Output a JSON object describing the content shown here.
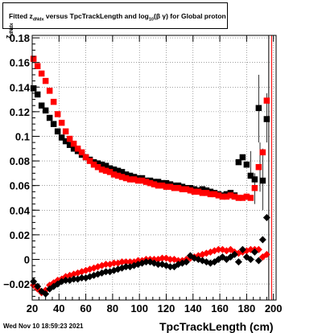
{
  "title": {
    "prefix": "Fitted  z",
    "sub1": "dNdx",
    "middle": "  versus TpcTrackLength and log",
    "sub2": "10",
    "suffix": "(β  γ) for Global proton"
  },
  "timestamp": "Wed Nov 10 18:59:23 2021",
  "axis": {
    "xlabel": "TpcTrackLength (cm)",
    "ylabel_main": "z",
    "ylabel_sub": "dNdx"
  },
  "chart_data": {
    "type": "scatter",
    "xlim": [
      20,
      202
    ],
    "ylim": [
      -0.033,
      0.182
    ],
    "xticks": [
      20,
      40,
      60,
      80,
      100,
      120,
      140,
      160,
      180,
      200
    ],
    "yticks": [
      -0.02,
      0,
      0.02,
      0.04,
      0.06,
      0.08,
      0.1,
      0.12,
      0.14,
      0.16,
      0.18
    ],
    "ytick_labels": [
      "−0.02",
      "0",
      "0.02",
      "0.04",
      "0.06",
      "0.08",
      "0.1",
      "0.12",
      "0.14",
      "0.16",
      "0.18"
    ],
    "grid": true,
    "colors": {
      "black": "#000000",
      "red": "#ff0000",
      "grid": "#666666"
    },
    "series": [
      {
        "color": "#000000",
        "marker": "square",
        "x": [
          21,
          24,
          27,
          30,
          33,
          36,
          39,
          42,
          45,
          48,
          51,
          54,
          57,
          60,
          63,
          66,
          69,
          72,
          75,
          78,
          81,
          84,
          87,
          90,
          93,
          96,
          99,
          102,
          105,
          108,
          111,
          114,
          117,
          120,
          123,
          126,
          129,
          132,
          135,
          138,
          141,
          144,
          147,
          150,
          153,
          156,
          159,
          162,
          165,
          168,
          171,
          174,
          177,
          180,
          183,
          186,
          189,
          192,
          195
        ],
        "y": [
          0.139,
          0.134,
          0.125,
          0.121,
          0.115,
          0.11,
          0.104,
          0.099,
          0.096,
          0.093,
          0.09,
          0.088,
          0.085,
          0.083,
          0.081,
          0.079,
          0.078,
          0.077,
          0.076,
          0.074,
          0.073,
          0.072,
          0.071,
          0.069,
          0.068,
          0.067,
          0.066,
          0.066,
          0.064,
          0.064,
          0.063,
          0.063,
          0.062,
          0.062,
          0.061,
          0.06,
          0.06,
          0.059,
          0.058,
          0.058,
          0.057,
          0.056,
          0.057,
          0.056,
          0.055,
          0.054,
          0.053,
          0.052,
          0.053,
          0.054,
          0.052,
          0.079,
          0.083,
          0.077,
          0.068,
          0.065,
          0.123,
          0.064,
          0.114
        ]
      },
      {
        "color": "#ff0000",
        "marker": "square",
        "x": [
          21,
          24,
          27,
          30,
          33,
          36,
          39,
          42,
          45,
          48,
          51,
          54,
          57,
          60,
          63,
          66,
          69,
          72,
          75,
          78,
          81,
          84,
          87,
          90,
          93,
          96,
          99,
          102,
          105,
          108,
          111,
          114,
          117,
          120,
          123,
          126,
          129,
          132,
          135,
          138,
          141,
          144,
          147,
          150,
          153,
          156,
          159,
          162,
          165,
          168,
          171,
          174,
          177,
          180,
          183,
          186,
          189,
          192,
          195
        ],
        "y": [
          0.163,
          0.157,
          0.151,
          0.145,
          0.137,
          0.128,
          0.118,
          0.111,
          0.104,
          0.098,
          0.094,
          0.09,
          0.087,
          0.083,
          0.08,
          0.077,
          0.075,
          0.073,
          0.072,
          0.071,
          0.069,
          0.068,
          0.067,
          0.066,
          0.065,
          0.065,
          0.064,
          0.064,
          0.063,
          0.062,
          0.061,
          0.06,
          0.06,
          0.059,
          0.059,
          0.058,
          0.058,
          0.057,
          0.057,
          0.056,
          0.055,
          0.055,
          0.054,
          0.054,
          0.053,
          0.053,
          0.052,
          0.051,
          0.051,
          0.052,
          0.051,
          0.05,
          0.05,
          0.051,
          0.05,
          0.058,
          0.075,
          0.087,
          0.129
        ]
      },
      {
        "color": "#ff0000",
        "marker": "diamond",
        "x": [
          21,
          24,
          27,
          30,
          33,
          36,
          39,
          42,
          45,
          48,
          51,
          54,
          57,
          60,
          63,
          66,
          69,
          72,
          75,
          78,
          81,
          84,
          87,
          90,
          93,
          96,
          99,
          102,
          105,
          108,
          111,
          114,
          117,
          120,
          123,
          126,
          129,
          132,
          135,
          138,
          141,
          144,
          147,
          150,
          153,
          156,
          159,
          162,
          165,
          168,
          171,
          174,
          177,
          180,
          183,
          186,
          189,
          192,
          195
        ],
        "y": [
          -0.021,
          -0.024,
          -0.027,
          -0.025,
          -0.021,
          -0.019,
          -0.017,
          -0.016,
          -0.014,
          -0.013,
          -0.012,
          -0.011,
          -0.01,
          -0.009,
          -0.008,
          -0.007,
          -0.006,
          -0.005,
          -0.004,
          -0.004,
          -0.003,
          -0.003,
          -0.002,
          -0.002,
          -0.002,
          -0.002,
          -0.001,
          -0.001,
          0.0,
          0.0,
          0.0,
          0.0,
          0.001,
          0.001,
          0.0,
          0.0,
          -0.001,
          -0.001,
          0.0,
          0.001,
          0.002,
          0.003,
          0.004,
          0.005,
          0.006,
          0.007,
          0.008,
          0.008,
          0.007,
          0.008,
          0.006,
          0.005,
          0.006,
          0.007,
          0.008,
          0.008,
          0.008,
          0.002,
          0.004
        ]
      },
      {
        "color": "#000000",
        "marker": "diamond",
        "x": [
          21,
          24,
          27,
          30,
          33,
          36,
          39,
          42,
          45,
          48,
          51,
          54,
          57,
          60,
          63,
          66,
          69,
          72,
          75,
          78,
          81,
          84,
          87,
          90,
          93,
          96,
          99,
          102,
          105,
          108,
          111,
          114,
          117,
          120,
          123,
          126,
          129,
          132,
          135,
          138,
          141,
          144,
          147,
          150,
          153,
          156,
          159,
          162,
          165,
          168,
          171,
          174,
          177,
          180,
          183,
          186,
          189,
          192,
          195
        ],
        "y": [
          -0.018,
          -0.022,
          -0.026,
          -0.028,
          -0.024,
          -0.022,
          -0.02,
          -0.018,
          -0.017,
          -0.017,
          -0.016,
          -0.016,
          -0.015,
          -0.015,
          -0.014,
          -0.013,
          -0.012,
          -0.011,
          -0.01,
          -0.01,
          -0.009,
          -0.008,
          -0.007,
          -0.006,
          -0.006,
          -0.005,
          -0.004,
          -0.003,
          -0.002,
          -0.002,
          -0.003,
          -0.004,
          -0.004,
          -0.005,
          -0.006,
          -0.006,
          -0.004,
          -0.003,
          -0.002,
          0.003,
          0.001,
          0.0,
          -0.001,
          -0.002,
          -0.003,
          -0.002,
          0.0,
          0.002,
          0.0,
          0.002,
          0.004,
          -0.002,
          0.008,
          0.002,
          0.0,
          0.006,
          -0.001,
          0.016,
          0.034
        ]
      }
    ]
  }
}
